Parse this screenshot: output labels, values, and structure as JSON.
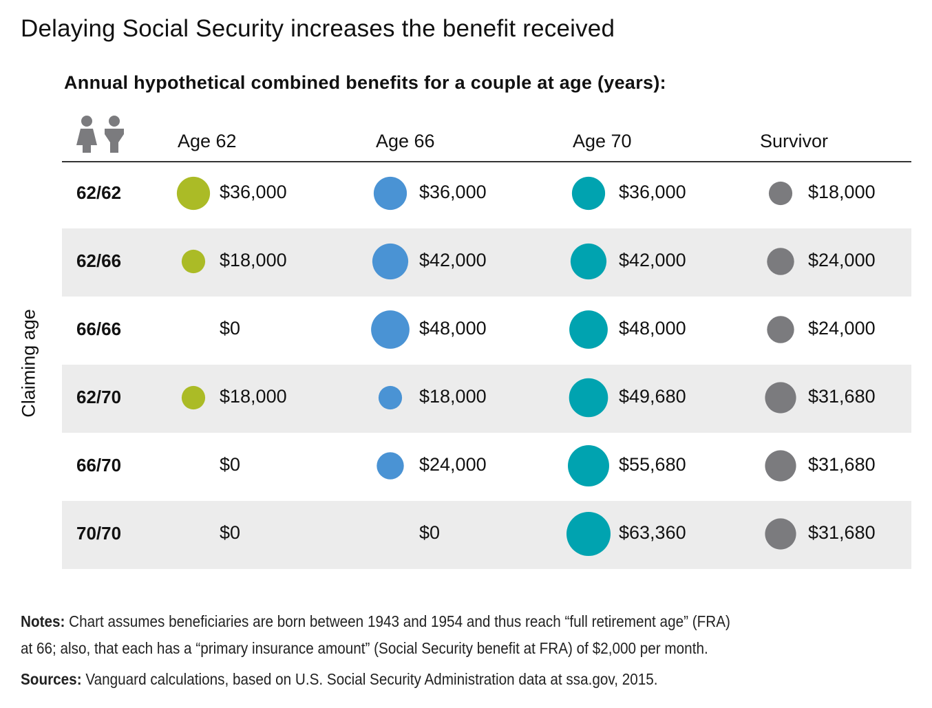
{
  "title": "Delaying Social Security increases the benefit received",
  "subtitle": "Annual hypothetical combined benefits for a couple at age (years):",
  "icons": [
    "couple-icon"
  ],
  "colors": {
    "age62": "#abbb26",
    "age66": "#4a93d4",
    "age70": "#00a3b0",
    "survivor": "#7b7b7e",
    "row_shade": "#ececec"
  },
  "chart_data": {
    "type": "table",
    "row_axis_label": "Claiming age",
    "columns": [
      "Age 62",
      "Age 66",
      "Age 70",
      "Survivor"
    ],
    "rows": [
      {
        "claim": "62/62",
        "values": [
          36000,
          36000,
          36000,
          18000
        ],
        "labels": [
          "$36,000",
          "$36,000",
          "$36,000",
          "$18,000"
        ]
      },
      {
        "claim": "62/66",
        "values": [
          18000,
          42000,
          42000,
          24000
        ],
        "labels": [
          "$18,000",
          "$42,000",
          "$42,000",
          "$24,000"
        ]
      },
      {
        "claim": "66/66",
        "values": [
          0,
          48000,
          48000,
          24000
        ],
        "labels": [
          "$0",
          "$48,000",
          "$48,000",
          "$24,000"
        ]
      },
      {
        "claim": "62/70",
        "values": [
          18000,
          18000,
          49680,
          31680
        ],
        "labels": [
          "$18,000",
          "$18,000",
          "$49,680",
          "$31,680"
        ]
      },
      {
        "claim": "66/70",
        "values": [
          0,
          24000,
          55680,
          31680
        ],
        "labels": [
          "$0",
          "$24,000",
          "$55,680",
          "$31,680"
        ]
      },
      {
        "claim": "70/70",
        "values": [
          0,
          0,
          63360,
          31680
        ],
        "labels": [
          "$0",
          "$0",
          "$63,360",
          "$31,680"
        ]
      }
    ],
    "shaded_rows": [
      1,
      3,
      5
    ]
  },
  "notes": {
    "label": "Notes:",
    "line1": " Chart assumes beneficiaries are born between 1943 and 1954 and thus reach “full retirement age” (FRA)",
    "line2": "at 66; also, that each has a “primary insurance amount” (Social Security benefit at FRA) of $2,000 per month."
  },
  "sources": {
    "label": "Sources:",
    "text": " Vanguard calculations, based on U.S. Social Security Administration data at ssa.gov, 2015."
  }
}
